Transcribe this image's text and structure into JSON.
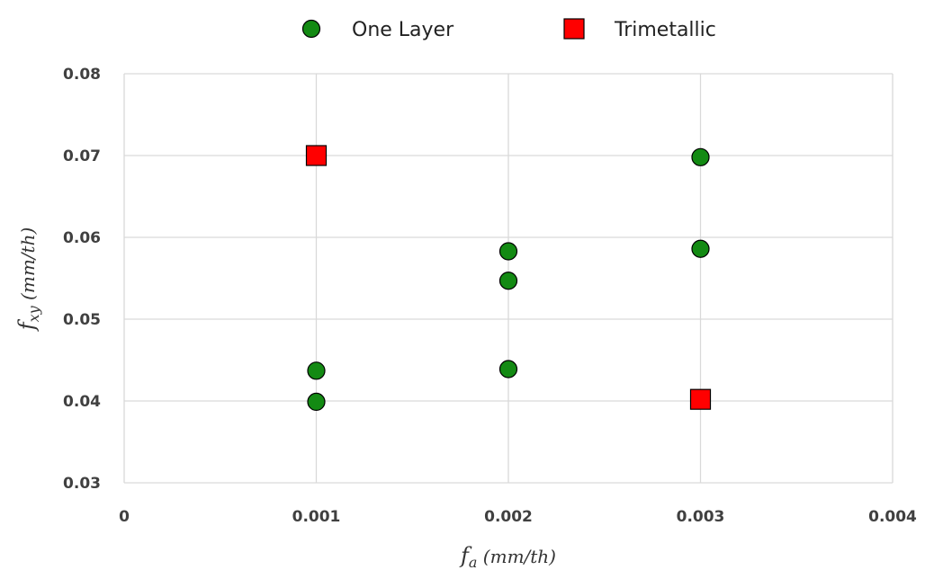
{
  "chart_data": {
    "type": "scatter",
    "title": "",
    "xlabel": {
      "main": "f",
      "sub": "a",
      "unit": " (mm/th)"
    },
    "ylabel": {
      "main": "f",
      "sub": "xy",
      "unit": " (mm/th)"
    },
    "xlim": [
      0,
      0.004
    ],
    "ylim": [
      0.03,
      0.08
    ],
    "xticks": [
      0,
      0.001,
      0.002,
      0.003,
      0.004
    ],
    "xtick_labels": [
      "0",
      "0.001",
      "0.002",
      "0.003",
      "0.004"
    ],
    "yticks": [
      0.03,
      0.04,
      0.05,
      0.06,
      0.07,
      0.08
    ],
    "ytick_labels": [
      "0.03",
      "0.04",
      "0.05",
      "0.06",
      "0.07",
      "0.08"
    ],
    "grid": true,
    "legend": "top-center",
    "series": [
      {
        "name": "One Layer",
        "marker": "circle",
        "color": "#138a13",
        "x": [
          0.001,
          0.001,
          0.002,
          0.002,
          0.002,
          0.003,
          0.003
        ],
        "y": [
          0.0437,
          0.0399,
          0.0583,
          0.0547,
          0.0439,
          0.0698,
          0.0586
        ]
      },
      {
        "name": "Trimetallic",
        "marker": "square",
        "color": "#ff0000",
        "x": [
          0.001,
          0.003
        ],
        "y": [
          0.07,
          0.0402
        ]
      }
    ]
  }
}
